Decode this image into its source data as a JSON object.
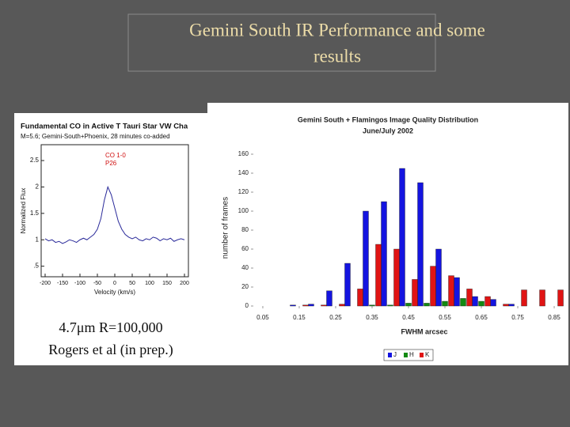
{
  "slide": {
    "title": [
      "Gemini South IR Performance and some",
      "results"
    ],
    "caption": [
      "4.7μm R=100,000",
      "Rogers et al (in prep.)"
    ]
  },
  "chart_data": [
    {
      "type": "line",
      "title": "Fundamental CO in Active T Tauri Star VW Cha",
      "subtitle": "M=5.6; Gemini-South+Phoenix, 28 minutes co-added",
      "annotations": [
        "CO 1-0",
        "P26"
      ],
      "y_label": "Normalized Flux",
      "x_label": "Velocity (km/s)",
      "color": "#2a2a9a",
      "x": [
        -200,
        -190,
        -180,
        -170,
        -160,
        -150,
        -140,
        -130,
        -120,
        -110,
        -100,
        -90,
        -80,
        -70,
        -60,
        -50,
        -40,
        -30,
        -20,
        -10,
        0,
        10,
        20,
        30,
        40,
        50,
        60,
        70,
        80,
        90,
        100,
        110,
        120,
        130,
        140,
        150,
        160,
        170,
        180,
        190,
        200
      ],
      "values": [
        1.02,
        0.98,
        1.0,
        0.95,
        0.97,
        0.93,
        0.96,
        1.0,
        0.98,
        0.95,
        1.0,
        1.03,
        1.0,
        1.05,
        1.1,
        1.2,
        1.4,
        1.75,
        2.0,
        1.85,
        1.6,
        1.35,
        1.2,
        1.1,
        1.05,
        1.02,
        1.05,
        1.0,
        0.98,
        1.02,
        1.0,
        1.05,
        1.03,
        0.98,
        1.02,
        1.0,
        1.03,
        0.97,
        1.0,
        1.02,
        1.0
      ],
      "xlim": [
        -200,
        200
      ],
      "xticks": [
        -200,
        -150,
        -100,
        -50,
        0,
        50,
        100,
        150,
        200
      ],
      "ylim": [
        0.3,
        2.8
      ],
      "yticks": [
        {
          "value": 0.5,
          "label": ".5"
        },
        1,
        1.5,
        2,
        2.5
      ]
    },
    {
      "type": "bar",
      "title": "Gemini South + Flamingos Image Quality Distribution",
      "subtitle": "June/July 2002",
      "y_label": "number of frames",
      "x_label": "FWHM arcsec",
      "x": [
        0.15,
        0.2,
        0.25,
        0.3,
        0.35,
        0.4,
        0.45,
        0.5,
        0.55,
        0.6,
        0.65,
        0.7,
        0.75,
        0.8,
        0.85
      ],
      "series": [
        {
          "name": "J",
          "color": "#1414e0",
          "values": [
            1,
            2,
            16,
            45,
            100,
            110,
            145,
            130,
            60,
            30,
            10,
            7,
            2,
            0,
            0
          ]
        },
        {
          "name": "H",
          "color": "#128a12",
          "values": [
            0,
            0,
            0,
            0,
            1,
            1,
            3,
            3,
            5,
            8,
            5,
            0,
            0,
            0,
            0
          ]
        },
        {
          "name": "K",
          "color": "#e01414",
          "values": [
            1,
            1,
            2,
            18,
            65,
            60,
            28,
            42,
            32,
            18,
            10,
            2,
            17,
            17,
            17
          ]
        }
      ],
      "xlim": [
        0.024,
        0.876
      ],
      "xticks": [
        0.05,
        0.15,
        0.25,
        0.35,
        0.45,
        0.55,
        0.65,
        0.75,
        0.85
      ],
      "ylim": [
        0,
        165
      ],
      "yticks": [
        0,
        20,
        40,
        60,
        80,
        100,
        120,
        140,
        160
      ],
      "legend": "bottom"
    }
  ]
}
